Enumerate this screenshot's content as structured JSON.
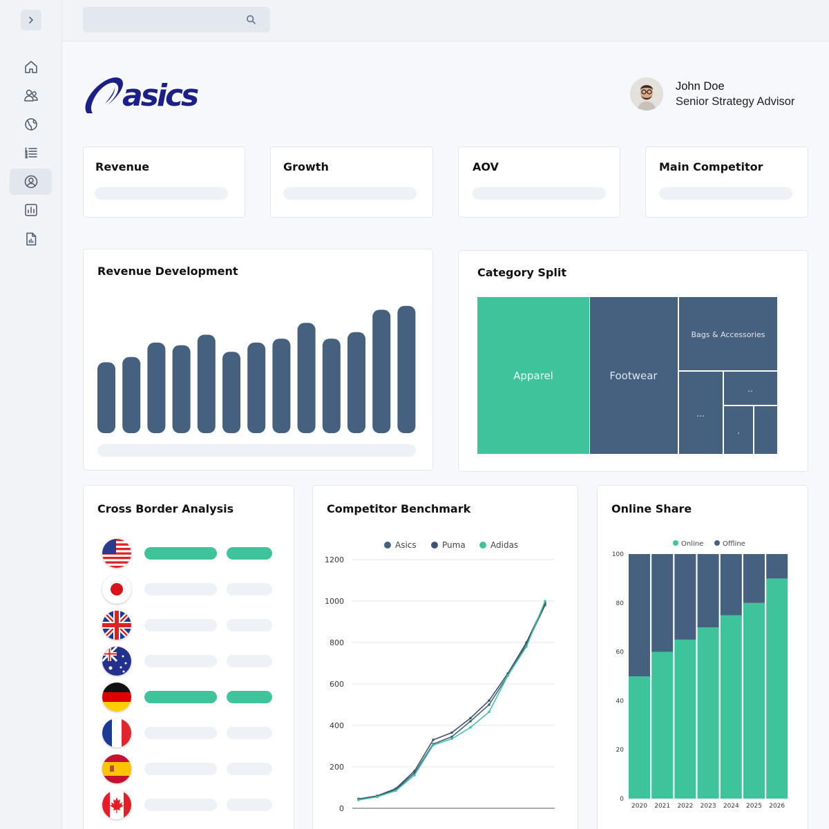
{
  "brand": {
    "name": "asics"
  },
  "search": {
    "placeholder": ""
  },
  "user": {
    "name": "John Doe",
    "role": "Senior Strategy Advisor"
  },
  "sidebar": {
    "items": [
      {
        "icon": "home-icon"
      },
      {
        "icon": "users-icon"
      },
      {
        "icon": "globe-icon"
      },
      {
        "icon": "list-icon"
      },
      {
        "icon": "user-circle-icon",
        "active": true
      },
      {
        "icon": "bar-chart-icon"
      },
      {
        "icon": "report-icon"
      }
    ]
  },
  "kpis": [
    {
      "label": "Revenue"
    },
    {
      "label": "Growth"
    },
    {
      "label": "AOV"
    },
    {
      "label": "Main Competitor"
    }
  ],
  "colors": {
    "primary": "#46607f",
    "accent": "#3fc39b",
    "asics_blue": "#1b1f87"
  },
  "revenue_development": {
    "title": "Revenue Development"
  },
  "category_split": {
    "title": "Category Split",
    "labels": {
      "apparel": "Apparel",
      "footwear": "Footwear",
      "bags": "Bags & Accessories",
      "small1": "..",
      "small2": "...",
      "small3": "."
    }
  },
  "cross_border": {
    "title": "Cross Border Analysis",
    "rows": [
      {
        "country": "United States",
        "flag": "us-flag-icon",
        "highlight": true
      },
      {
        "country": "Japan",
        "flag": "jp-flag-icon",
        "highlight": false
      },
      {
        "country": "United Kingdom",
        "flag": "uk-flag-icon",
        "highlight": false
      },
      {
        "country": "Australia",
        "flag": "au-flag-icon",
        "highlight": false
      },
      {
        "country": "Germany",
        "flag": "de-flag-icon",
        "highlight": true
      },
      {
        "country": "France",
        "flag": "fr-flag-icon",
        "highlight": false
      },
      {
        "country": "Spain",
        "flag": "es-flag-icon",
        "highlight": false
      },
      {
        "country": "Canada",
        "flag": "ca-flag-icon",
        "highlight": false
      }
    ]
  },
  "competitor_benchmark": {
    "title": "Competitor Benchmark"
  },
  "online_share": {
    "title": "Online Share"
  },
  "chart_data": [
    {
      "id": "revenue_development",
      "type": "bar",
      "title": "Revenue Development",
      "values": [
        54,
        58,
        69,
        67,
        75,
        62,
        69,
        72,
        84,
        72,
        77,
        94,
        97
      ],
      "ylim": [
        0,
        100
      ],
      "color": "#46607f"
    },
    {
      "id": "category_split",
      "type": "treemap",
      "title": "Category Split",
      "items": [
        {
          "label": "Apparel",
          "value": 37,
          "color": "#3fc39b"
        },
        {
          "label": "Footwear",
          "value": 29,
          "color": "#46607f"
        },
        {
          "label": "Bags & Accessories",
          "value": 13,
          "color": "#46607f"
        },
        {
          "label": "...",
          "value": 8,
          "color": "#46607f"
        },
        {
          "label": "..",
          "value": 5,
          "color": "#46607f"
        },
        {
          "label": ".",
          "value": 4,
          "color": "#46607f"
        },
        {
          "label": "",
          "value": 4,
          "color": "#46607f"
        }
      ]
    },
    {
      "id": "competitor_benchmark",
      "type": "line",
      "title": "Competitor Benchmark",
      "ylim": [
        0,
        1200
      ],
      "yticks": [
        0,
        200,
        400,
        600,
        800,
        1000,
        1200
      ],
      "series": [
        {
          "name": "Asics",
          "color": "#46607f",
          "values": [
            45,
            55,
            90,
            170,
            310,
            345,
            420,
            500,
            640,
            790,
            980
          ]
        },
        {
          "name": "Puma",
          "color": "#3e5370",
          "values": [
            45,
            60,
            95,
            180,
            330,
            365,
            435,
            520,
            650,
            800,
            990
          ]
        },
        {
          "name": "Adidas",
          "color": "#3fc39b",
          "values": [
            40,
            55,
            85,
            160,
            305,
            335,
            390,
            465,
            640,
            780,
            1000
          ]
        }
      ]
    },
    {
      "id": "online_share",
      "type": "bar",
      "stacked": true,
      "title": "Online Share",
      "categories": [
        "2020",
        "2021",
        "2022",
        "2023",
        "2024",
        "2025",
        "2026"
      ],
      "ylim": [
        0,
        100
      ],
      "yticks": [
        0,
        20,
        40,
        60,
        80,
        100
      ],
      "series": [
        {
          "name": "Online",
          "color": "#3fc39b",
          "values": [
            50,
            60,
            65,
            70,
            75,
            80,
            90
          ]
        },
        {
          "name": "Offline",
          "color": "#46607f",
          "values": [
            50,
            40,
            35,
            30,
            25,
            20,
            10
          ]
        }
      ],
      "legend": "top"
    }
  ]
}
